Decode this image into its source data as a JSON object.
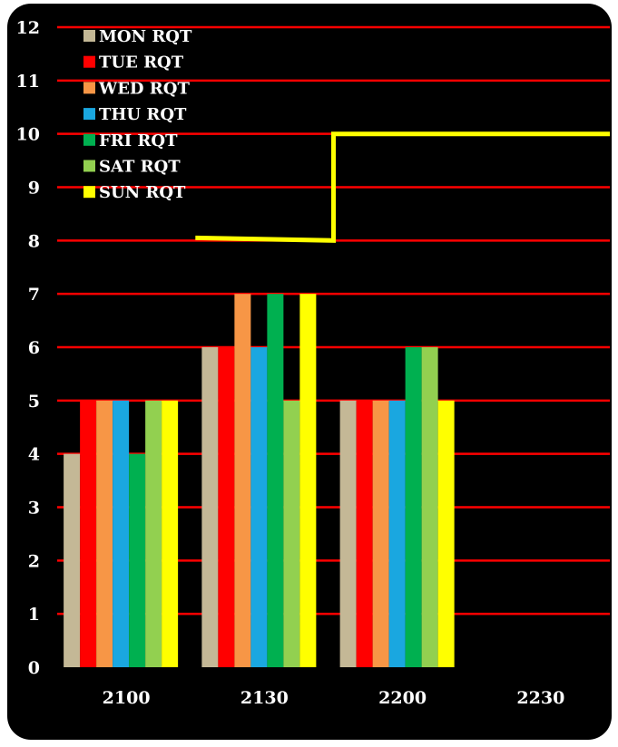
{
  "chart_data": {
    "type": "bar",
    "title": "",
    "xlabel": "",
    "ylabel": "",
    "categories": [
      "2100",
      "2130",
      "2200",
      "2230"
    ],
    "ylim": [
      0,
      12
    ],
    "y_ticks": [
      0,
      1,
      2,
      3,
      4,
      5,
      6,
      7,
      8,
      9,
      10,
      11,
      12
    ],
    "grid": true,
    "legend_position": "top-left",
    "background": "#000000",
    "gridline_color": "#ff0000",
    "series": [
      {
        "name": "MON RQT",
        "color": "#c4b896",
        "values": [
          4,
          6,
          5,
          null
        ]
      },
      {
        "name": "TUE RQT",
        "color": "#ff0000",
        "values": [
          5,
          6,
          5,
          null
        ]
      },
      {
        "name": "WED RQT",
        "color": "#f79646",
        "values": [
          5,
          7,
          5,
          null
        ]
      },
      {
        "name": "THU RQT",
        "color": "#1aa7e0",
        "values": [
          5,
          6,
          5,
          null
        ]
      },
      {
        "name": "FRI RQT",
        "color": "#00b050",
        "values": [
          4,
          7,
          6,
          null
        ]
      },
      {
        "name": "SAT RQT",
        "color": "#92d050",
        "values": [
          5,
          5,
          6,
          null
        ]
      },
      {
        "name": "SUN RQT",
        "color": "#ffff00",
        "values": [
          5,
          7,
          5,
          null
        ]
      }
    ],
    "line_series": {
      "color": "#ffff00",
      "points": [
        {
          "x": "2115",
          "y": 8.05
        },
        {
          "x": "2145",
          "y": 8.0
        },
        {
          "x": "2145",
          "y": 10.0
        },
        {
          "x": "2230",
          "y": 10.0
        }
      ]
    }
  }
}
